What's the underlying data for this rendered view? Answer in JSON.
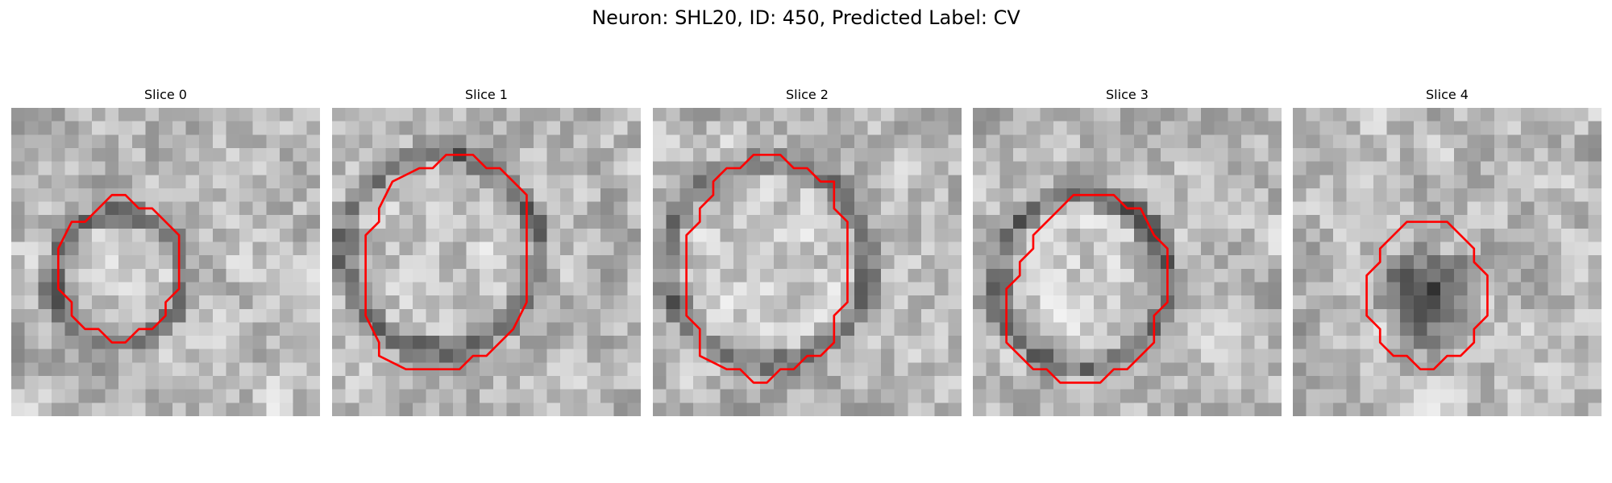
{
  "figure": {
    "title": "Neuron: SHL20, ID: 450, Predicted Label: CV"
  },
  "contour_color": "#ff0000",
  "image_colormap": "grayscale",
  "slices": [
    {
      "title": "Slice 0",
      "image_description": "grayscale micrograph crop",
      "seed": 11,
      "dark_center": false,
      "contour": [
        [
          8.5,
          6.5
        ],
        [
          7.5,
          6.5
        ],
        [
          5.5,
          8.5
        ],
        [
          4.5,
          8.5
        ],
        [
          3.5,
          10.5
        ],
        [
          3.5,
          13.5
        ],
        [
          4.5,
          14.5
        ],
        [
          4.5,
          15.5
        ],
        [
          5.5,
          16.5
        ],
        [
          6.5,
          16.5
        ],
        [
          7.5,
          17.5
        ],
        [
          8.5,
          17.5
        ],
        [
          9.5,
          16.5
        ],
        [
          10.5,
          16.5
        ],
        [
          11.5,
          15.5
        ],
        [
          11.5,
          14.5
        ],
        [
          12.5,
          13.5
        ],
        [
          12.5,
          9.5
        ],
        [
          10.5,
          7.5
        ],
        [
          9.5,
          7.5
        ]
      ]
    },
    {
      "title": "Slice 1",
      "image_description": "grayscale micrograph crop",
      "seed": 23,
      "dark_center": false,
      "contour": [
        [
          9.5,
          3.5
        ],
        [
          8.5,
          3.5
        ],
        [
          7.5,
          4.5
        ],
        [
          6.5,
          4.5
        ],
        [
          4.5,
          5.5
        ],
        [
          3.5,
          7.5
        ],
        [
          3.5,
          8.5
        ],
        [
          2.5,
          9.5
        ],
        [
          2.5,
          15.5
        ],
        [
          3.5,
          17.5
        ],
        [
          3.5,
          18.5
        ],
        [
          5.5,
          19.5
        ],
        [
          9.5,
          19.5
        ],
        [
          10.5,
          18.5
        ],
        [
          11.5,
          18.5
        ],
        [
          13.5,
          16.5
        ],
        [
          14.5,
          14.5
        ],
        [
          14.5,
          6.5
        ],
        [
          12.5,
          4.5
        ],
        [
          11.5,
          4.5
        ],
        [
          10.5,
          3.5
        ]
      ]
    },
    {
      "title": "Slice 2",
      "image_description": "grayscale micrograph crop",
      "seed": 37,
      "dark_center": false,
      "contour": [
        [
          9.5,
          3.5
        ],
        [
          8.5,
          3.5
        ],
        [
          7.5,
          3.5
        ],
        [
          6.5,
          4.5
        ],
        [
          5.5,
          4.5
        ],
        [
          4.5,
          5.5
        ],
        [
          4.5,
          6.5
        ],
        [
          3.5,
          7.5
        ],
        [
          3.5,
          8.5
        ],
        [
          2.5,
          9.5
        ],
        [
          2.5,
          15.5
        ],
        [
          3.5,
          16.5
        ],
        [
          3.5,
          18.5
        ],
        [
          5.5,
          19.5
        ],
        [
          6.5,
          19.5
        ],
        [
          7.5,
          20.5
        ],
        [
          8.5,
          20.5
        ],
        [
          9.5,
          19.5
        ],
        [
          10.5,
          19.5
        ],
        [
          11.5,
          18.5
        ],
        [
          12.5,
          18.5
        ],
        [
          13.5,
          17.5
        ],
        [
          13.5,
          15.5
        ],
        [
          14.5,
          14.5
        ],
        [
          14.5,
          8.5
        ],
        [
          13.5,
          7.5
        ],
        [
          13.5,
          5.5
        ],
        [
          12.5,
          5.5
        ],
        [
          11.5,
          4.5
        ],
        [
          10.5,
          4.5
        ]
      ]
    },
    {
      "title": "Slice 3",
      "image_description": "grayscale micrograph crop",
      "seed": 53,
      "dark_center": false,
      "contour": [
        [
          9.5,
          6.5
        ],
        [
          8.5,
          6.5
        ],
        [
          7.5,
          6.5
        ],
        [
          6.5,
          7.5
        ],
        [
          5.5,
          8.5
        ],
        [
          4.5,
          9.5
        ],
        [
          4.5,
          10.5
        ],
        [
          3.5,
          11.5
        ],
        [
          3.5,
          12.5
        ],
        [
          2.5,
          13.5
        ],
        [
          2.5,
          17.5
        ],
        [
          3.5,
          18.5
        ],
        [
          4.5,
          19.5
        ],
        [
          5.5,
          19.5
        ],
        [
          6.5,
          20.5
        ],
        [
          9.5,
          20.5
        ],
        [
          10.5,
          19.5
        ],
        [
          11.5,
          19.5
        ],
        [
          13.5,
          17.5
        ],
        [
          13.5,
          15.5
        ],
        [
          14.5,
          14.5
        ],
        [
          14.5,
          10.5
        ],
        [
          13.5,
          9.5
        ],
        [
          12.5,
          7.5
        ],
        [
          11.5,
          7.5
        ],
        [
          10.5,
          6.5
        ]
      ]
    },
    {
      "title": "Slice 4",
      "image_description": "grayscale micrograph crop",
      "seed": 71,
      "dark_center": true,
      "contour": [
        [
          9.5,
          8.5
        ],
        [
          8.5,
          8.5
        ],
        [
          6.5,
          10.5
        ],
        [
          6.5,
          11.5
        ],
        [
          5.5,
          12.5
        ],
        [
          5.5,
          15.5
        ],
        [
          6.5,
          16.5
        ],
        [
          6.5,
          17.5
        ],
        [
          7.5,
          18.5
        ],
        [
          8.5,
          18.5
        ],
        [
          9.5,
          19.5
        ],
        [
          10.5,
          19.5
        ],
        [
          11.5,
          18.5
        ],
        [
          12.5,
          18.5
        ],
        [
          13.5,
          17.5
        ],
        [
          13.5,
          16.5
        ],
        [
          14.5,
          15.5
        ],
        [
          14.5,
          12.5
        ],
        [
          13.5,
          11.5
        ],
        [
          13.5,
          10.5
        ],
        [
          12.5,
          9.5
        ],
        [
          11.5,
          8.5
        ],
        [
          10.5,
          8.5
        ]
      ]
    }
  ]
}
